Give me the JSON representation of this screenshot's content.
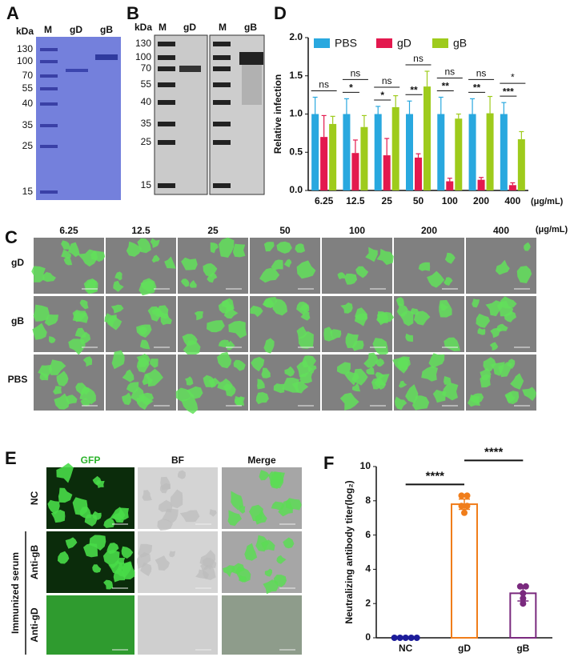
{
  "panels": {
    "A": {
      "label": "A",
      "unit": "kDa",
      "lanes": [
        "M",
        "gD",
        "gB"
      ],
      "markers": [
        130,
        100,
        70,
        55,
        40,
        35,
        25,
        15
      ]
    },
    "B": {
      "label": "B",
      "unit": "kDa",
      "lanes": [
        "M",
        "gD",
        "M",
        "gB"
      ],
      "markers": [
        130,
        100,
        70,
        55,
        40,
        35,
        25,
        15
      ]
    },
    "C": {
      "label": "C",
      "columns": [
        "6.25",
        "12.5",
        "25",
        "50",
        "100",
        "200",
        "400"
      ],
      "unit": "(μg/mL)",
      "rows": [
        "gD",
        "gB",
        "PBS"
      ]
    },
    "D": {
      "label": "D"
    },
    "E": {
      "label": "E",
      "columns": [
        "GFP",
        "BF",
        "Merge"
      ],
      "rows": [
        "NC",
        "Anti-gB",
        "Anti-gD"
      ],
      "group": "Immunized serum"
    },
    "F": {
      "label": "F"
    }
  },
  "chart_data": [
    {
      "type": "bar",
      "y_label": "Relative infection",
      "x_unit": "(μg/mL)",
      "categories": [
        "6.25",
        "12.5",
        "25",
        "50",
        "100",
        "200",
        "400"
      ],
      "series": [
        {
          "name": "PBS",
          "color": "#29a8df",
          "values": [
            1.0,
            1.0,
            1.0,
            1.0,
            1.0,
            1.0,
            1.0
          ],
          "errors": [
            0.22,
            0.2,
            0.1,
            0.17,
            0.22,
            0.2,
            0.15
          ]
        },
        {
          "name": "gD",
          "color": "#e3194e",
          "values": [
            0.7,
            0.49,
            0.46,
            0.43,
            0.12,
            0.14,
            0.07
          ],
          "errors": [
            0.28,
            0.17,
            0.22,
            0.05,
            0.04,
            0.03,
            0.03
          ]
        },
        {
          "name": "gB",
          "color": "#9ecb1c",
          "values": [
            0.87,
            0.83,
            1.09,
            1.36,
            0.94,
            1.01,
            0.67
          ],
          "errors": [
            0.1,
            0.15,
            0.15,
            0.2,
            0.06,
            0.22,
            0.1
          ]
        }
      ],
      "ylim": [
        0,
        2
      ],
      "yticks": [
        {
          "value": 0,
          "label": "0.0"
        },
        0.5,
        {
          "value": 1,
          "label": "1.0"
        },
        1.5,
        {
          "value": 2,
          "label": "2.0"
        }
      ],
      "legend": "top",
      "significance_top": [
        "ns",
        "ns",
        "ns",
        "ns",
        "ns",
        "ns",
        "*"
      ],
      "significance_bottom": [
        null,
        "*",
        "*",
        "**",
        "**",
        "**",
        "***"
      ]
    },
    {
      "type": "dotplot",
      "y_label": "Neutralizing antibody titer(log₂)",
      "categories": [
        "NC",
        "gD",
        "gB"
      ],
      "colors": [
        "#1c1c9a",
        "#f07d1a",
        "#7a2a7e"
      ],
      "values": [
        0,
        7.8,
        2.6
      ],
      "errors": [
        0,
        0.3,
        0.45
      ],
      "points": [
        [
          0,
          0,
          0,
          0,
          0
        ],
        [
          8.3,
          8.3,
          7.7,
          7.7,
          7.3
        ],
        [
          3.0,
          3.0,
          2.6,
          2.3,
          2.0
        ]
      ],
      "ylim": [
        0,
        10
      ],
      "yticks": [
        0,
        2,
        4,
        6,
        8,
        10
      ],
      "significance": [
        "****",
        "****"
      ]
    }
  ]
}
